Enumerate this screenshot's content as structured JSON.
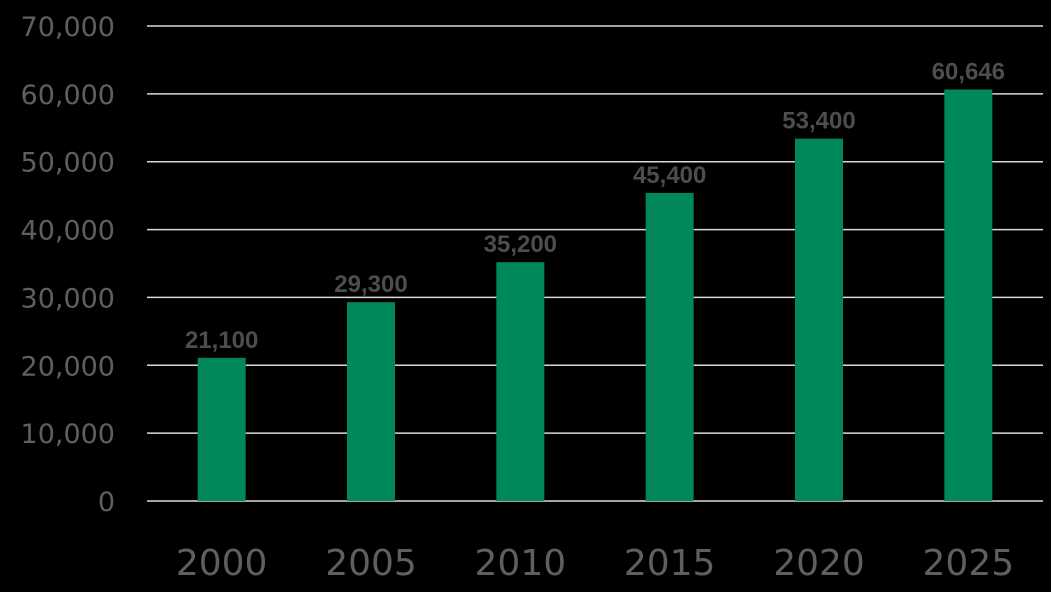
{
  "chart_data": {
    "type": "bar",
    "title": "",
    "xlabel": "",
    "ylabel": "",
    "categories": [
      "2000",
      "2005",
      "2010",
      "2015",
      "2020",
      "2025"
    ],
    "values": [
      21100,
      29300,
      35200,
      45400,
      53400,
      60646
    ],
    "data_labels": [
      "21,100",
      "29,300",
      "35,200",
      "45,400",
      "53,400",
      "60,646"
    ],
    "ylim": [
      0,
      70000
    ],
    "yticks": [
      0,
      10000,
      20000,
      30000,
      40000,
      50000,
      60000,
      70000
    ],
    "ytick_labels": [
      "0",
      "10,000",
      "20,000",
      "30,000",
      "40,000",
      "50,000",
      "60,000",
      "70,000"
    ],
    "grid": true,
    "legend": "none",
    "colors": {
      "bar": "#00875a",
      "background": "#000000",
      "grid": "#d9d9d9",
      "tick_text": "#5f5f5f",
      "label_text": "#4d4d4d"
    }
  }
}
